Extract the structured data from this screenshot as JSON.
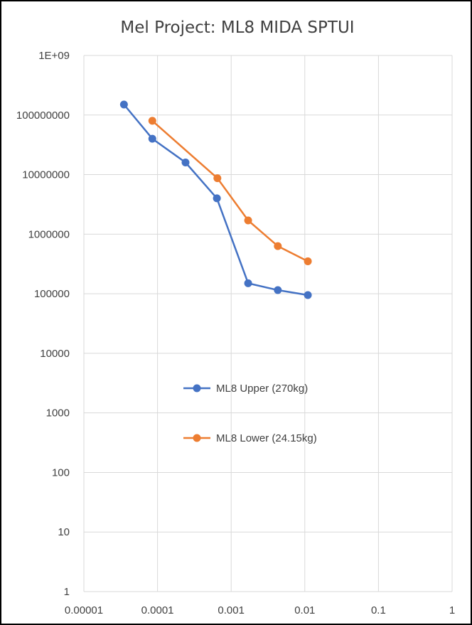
{
  "chart_data": {
    "type": "scatter",
    "title": "Mel Project: ML8 MIDA SPTUI",
    "xlabel": "",
    "ylabel": "",
    "xscale": "log",
    "yscale": "log",
    "xlim": [
      1e-05,
      1
    ],
    "ylim": [
      1,
      1000000000
    ],
    "x_tick_labels": [
      "0.00001",
      "0.0001",
      "0.001",
      "0.01",
      "0.1",
      "1"
    ],
    "y_tick_labels": [
      "1",
      "10",
      "100",
      "1000",
      "10000",
      "100000",
      "1000000",
      "10000000",
      "100000000",
      "1E+09"
    ],
    "grid": true,
    "legend_position": "center-left",
    "series": [
      {
        "name": "ML8 Upper (270kg)",
        "color": "#4472C4",
        "points": [
          [
            3.5e-05,
            150000000
          ],
          [
            8.5e-05,
            40000000
          ],
          [
            0.00024,
            16000000
          ],
          [
            0.00064,
            4000000
          ],
          [
            0.0017,
            150000
          ],
          [
            0.0043,
            115000
          ],
          [
            0.011,
            95000
          ]
        ]
      },
      {
        "name": "ML8 Lower (24.15kg)",
        "color": "#ED7D31",
        "points": [
          [
            8.5e-05,
            80000000
          ],
          [
            0.00065,
            8700000
          ],
          [
            0.0017,
            1700000
          ],
          [
            0.0043,
            630000
          ],
          [
            0.011,
            350000
          ]
        ]
      }
    ]
  }
}
